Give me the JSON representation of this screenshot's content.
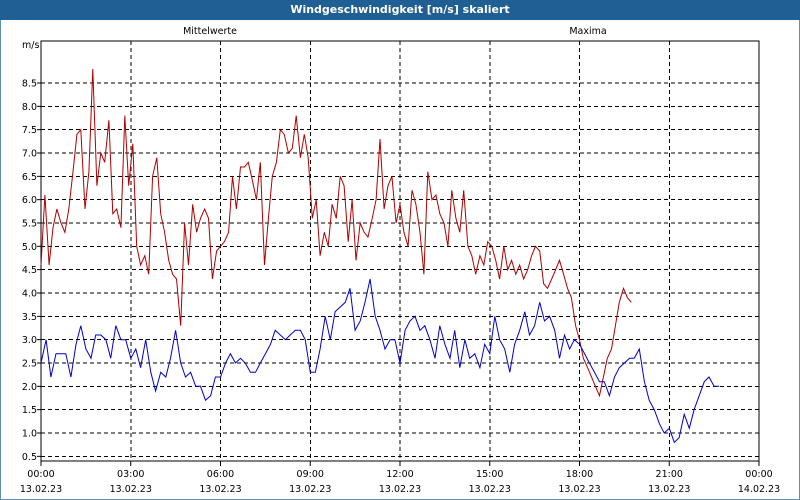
{
  "title": "Windgeschwindigkeit [m/s] skaliert",
  "chart_data": {
    "type": "line",
    "title": "Windgeschwindigkeit [m/s] skaliert",
    "ylabel": "m/s",
    "ylim": [
      0.4,
      9.4
    ],
    "yticks": [
      0.5,
      1.0,
      1.5,
      2.0,
      2.5,
      3.0,
      3.5,
      4.0,
      4.5,
      5.0,
      5.5,
      6.0,
      6.5,
      7.0,
      7.5,
      8.0,
      8.5
    ],
    "xlim_hours": [
      0,
      24
    ],
    "x_ticks": [
      {
        "hour": 0,
        "time": "00:00",
        "date": "13.02.23"
      },
      {
        "hour": 3,
        "time": "03:00",
        "date": "13.02.23"
      },
      {
        "hour": 6,
        "time": "06:00",
        "date": "13.02.23"
      },
      {
        "hour": 9,
        "time": "09:00",
        "date": "13.02.23"
      },
      {
        "hour": 12,
        "time": "12:00",
        "date": "13.02.23"
      },
      {
        "hour": 15,
        "time": "15:00",
        "date": "13.02.23"
      },
      {
        "hour": 18,
        "time": "18:00",
        "date": "13.02.23"
      },
      {
        "hour": 21,
        "time": "21:00",
        "date": "13.02.23"
      },
      {
        "hour": 24,
        "time": "00:00",
        "date": "14.02.23"
      }
    ],
    "grid": true,
    "series": [
      {
        "name": "Mittelwerte",
        "color": "#0000cc",
        "points": [
          [
            0.0,
            2.5
          ],
          [
            0.17,
            3.0
          ],
          [
            0.33,
            2.2
          ],
          [
            0.5,
            2.7
          ],
          [
            0.67,
            2.7
          ],
          [
            0.83,
            2.7
          ],
          [
            1.0,
            2.2
          ],
          [
            1.17,
            2.9
          ],
          [
            1.33,
            3.3
          ],
          [
            1.5,
            2.8
          ],
          [
            1.67,
            2.6
          ],
          [
            1.83,
            3.1
          ],
          [
            2.0,
            3.1
          ],
          [
            2.17,
            3.0
          ],
          [
            2.33,
            2.6
          ],
          [
            2.5,
            3.3
          ],
          [
            2.67,
            3.0
          ],
          [
            2.83,
            3.0
          ],
          [
            3.0,
            2.6
          ],
          [
            3.17,
            2.8
          ],
          [
            3.33,
            2.4
          ],
          [
            3.5,
            3.0
          ],
          [
            3.67,
            2.3
          ],
          [
            3.83,
            1.9
          ],
          [
            4.0,
            2.3
          ],
          [
            4.17,
            2.2
          ],
          [
            4.33,
            2.6
          ],
          [
            4.5,
            3.2
          ],
          [
            4.67,
            2.5
          ],
          [
            4.83,
            2.2
          ],
          [
            5.0,
            2.3
          ],
          [
            5.17,
            2.0
          ],
          [
            5.33,
            2.0
          ],
          [
            5.5,
            1.7
          ],
          [
            5.67,
            1.8
          ],
          [
            5.83,
            2.2
          ],
          [
            6.0,
            2.2
          ],
          [
            6.17,
            2.5
          ],
          [
            6.33,
            2.7
          ],
          [
            6.5,
            2.5
          ],
          [
            6.67,
            2.6
          ],
          [
            6.83,
            2.5
          ],
          [
            7.0,
            2.3
          ],
          [
            7.17,
            2.3
          ],
          [
            7.33,
            2.5
          ],
          [
            7.5,
            2.7
          ],
          [
            7.67,
            2.9
          ],
          [
            7.83,
            3.2
          ],
          [
            8.0,
            3.1
          ],
          [
            8.17,
            3.0
          ],
          [
            8.33,
            3.1
          ],
          [
            8.5,
            3.2
          ],
          [
            8.67,
            3.2
          ],
          [
            8.83,
            3.0
          ],
          [
            9.0,
            2.3
          ],
          [
            9.17,
            2.3
          ],
          [
            9.33,
            2.8
          ],
          [
            9.5,
            3.5
          ],
          [
            9.67,
            3.0
          ],
          [
            9.83,
            3.6
          ],
          [
            10.0,
            3.7
          ],
          [
            10.17,
            3.8
          ],
          [
            10.33,
            4.1
          ],
          [
            10.5,
            3.2
          ],
          [
            10.67,
            3.4
          ],
          [
            10.83,
            3.8
          ],
          [
            11.0,
            4.3
          ],
          [
            11.17,
            3.5
          ],
          [
            11.33,
            3.2
          ],
          [
            11.5,
            2.8
          ],
          [
            11.67,
            3.0
          ],
          [
            11.83,
            3.0
          ],
          [
            12.0,
            2.5
          ],
          [
            12.17,
            3.2
          ],
          [
            12.33,
            3.4
          ],
          [
            12.5,
            3.5
          ],
          [
            12.67,
            3.2
          ],
          [
            12.83,
            3.3
          ],
          [
            13.0,
            3.0
          ],
          [
            13.17,
            2.6
          ],
          [
            13.33,
            3.3
          ],
          [
            13.5,
            2.9
          ],
          [
            13.67,
            2.6
          ],
          [
            13.83,
            3.2
          ],
          [
            14.0,
            2.4
          ],
          [
            14.17,
            3.0
          ],
          [
            14.33,
            2.6
          ],
          [
            14.5,
            2.7
          ],
          [
            14.67,
            2.4
          ],
          [
            14.83,
            2.9
          ],
          [
            15.0,
            2.7
          ],
          [
            15.17,
            3.5
          ],
          [
            15.33,
            3.0
          ],
          [
            15.5,
            2.8
          ],
          [
            15.67,
            2.3
          ],
          [
            15.83,
            2.9
          ],
          [
            16.0,
            3.2
          ],
          [
            16.17,
            3.6
          ],
          [
            16.33,
            3.1
          ],
          [
            16.5,
            3.3
          ],
          [
            16.67,
            3.8
          ],
          [
            16.83,
            3.4
          ],
          [
            17.0,
            3.5
          ],
          [
            17.17,
            3.2
          ],
          [
            17.33,
            2.6
          ],
          [
            17.5,
            3.1
          ],
          [
            17.67,
            2.8
          ],
          [
            17.83,
            3.0
          ],
          [
            18.0,
            2.9
          ],
          [
            18.17,
            2.7
          ],
          [
            18.33,
            2.5
          ],
          [
            18.5,
            2.3
          ],
          [
            18.67,
            2.1
          ],
          [
            18.83,
            2.1
          ],
          [
            19.0,
            1.8
          ],
          [
            19.17,
            2.2
          ],
          [
            19.33,
            2.4
          ],
          [
            19.5,
            2.5
          ],
          [
            19.67,
            2.6
          ],
          [
            19.83,
            2.6
          ],
          [
            20.0,
            2.8
          ],
          [
            20.17,
            2.1
          ],
          [
            20.33,
            1.7
          ],
          [
            20.5,
            1.5
          ],
          [
            20.67,
            1.2
          ],
          [
            20.83,
            1.0
          ],
          [
            21.0,
            1.1
          ],
          [
            21.17,
            0.8
          ],
          [
            21.33,
            0.9
          ],
          [
            21.5,
            1.4
          ],
          [
            21.67,
            1.1
          ],
          [
            21.83,
            1.5
          ],
          [
            22.0,
            1.8
          ],
          [
            22.17,
            2.1
          ],
          [
            22.33,
            2.2
          ],
          [
            22.5,
            2.0
          ],
          [
            22.67,
            2.0
          ]
        ]
      },
      {
        "name": "Maxima",
        "color": "#b00000",
        "points": [
          [
            0.0,
            4.6
          ],
          [
            0.13,
            6.1
          ],
          [
            0.27,
            4.6
          ],
          [
            0.4,
            5.4
          ],
          [
            0.53,
            5.8
          ],
          [
            0.67,
            5.5
          ],
          [
            0.8,
            5.3
          ],
          [
            0.93,
            5.8
          ],
          [
            1.07,
            6.6
          ],
          [
            1.2,
            7.4
          ],
          [
            1.33,
            7.5
          ],
          [
            1.47,
            5.8
          ],
          [
            1.6,
            6.6
          ],
          [
            1.73,
            8.8
          ],
          [
            1.87,
            6.3
          ],
          [
            2.0,
            7.0
          ],
          [
            2.13,
            6.8
          ],
          [
            2.27,
            7.7
          ],
          [
            2.4,
            5.7
          ],
          [
            2.53,
            5.8
          ],
          [
            2.67,
            5.4
          ],
          [
            2.8,
            7.8
          ],
          [
            2.93,
            6.3
          ],
          [
            3.07,
            7.2
          ],
          [
            3.2,
            5.0
          ],
          [
            3.33,
            4.6
          ],
          [
            3.47,
            4.8
          ],
          [
            3.6,
            4.4
          ],
          [
            3.73,
            6.5
          ],
          [
            3.87,
            6.9
          ],
          [
            4.0,
            5.7
          ],
          [
            4.13,
            5.3
          ],
          [
            4.27,
            4.7
          ],
          [
            4.4,
            4.4
          ],
          [
            4.53,
            4.3
          ],
          [
            4.67,
            3.3
          ],
          [
            4.8,
            5.5
          ],
          [
            4.93,
            4.6
          ],
          [
            5.07,
            5.9
          ],
          [
            5.2,
            5.3
          ],
          [
            5.33,
            5.6
          ],
          [
            5.47,
            5.8
          ],
          [
            5.6,
            5.6
          ],
          [
            5.73,
            4.3
          ],
          [
            5.87,
            4.9
          ],
          [
            6.0,
            5.0
          ],
          [
            6.13,
            5.1
          ],
          [
            6.27,
            5.3
          ],
          [
            6.4,
            6.5
          ],
          [
            6.53,
            5.8
          ],
          [
            6.67,
            6.7
          ],
          [
            6.8,
            6.7
          ],
          [
            6.93,
            6.8
          ],
          [
            7.07,
            6.4
          ],
          [
            7.2,
            6.0
          ],
          [
            7.33,
            6.8
          ],
          [
            7.47,
            4.6
          ],
          [
            7.6,
            5.6
          ],
          [
            7.73,
            6.5
          ],
          [
            7.87,
            6.8
          ],
          [
            8.0,
            7.5
          ],
          [
            8.13,
            7.4
          ],
          [
            8.27,
            7.0
          ],
          [
            8.4,
            7.1
          ],
          [
            8.53,
            7.8
          ],
          [
            8.67,
            6.9
          ],
          [
            8.8,
            7.4
          ],
          [
            8.93,
            6.9
          ],
          [
            9.07,
            5.6
          ],
          [
            9.2,
            6.0
          ],
          [
            9.33,
            4.8
          ],
          [
            9.47,
            5.3
          ],
          [
            9.6,
            5.0
          ],
          [
            9.73,
            5.9
          ],
          [
            9.87,
            5.6
          ],
          [
            10.0,
            6.5
          ],
          [
            10.13,
            6.3
          ],
          [
            10.27,
            5.1
          ],
          [
            10.4,
            6.0
          ],
          [
            10.53,
            4.7
          ],
          [
            10.67,
            5.5
          ],
          [
            10.8,
            5.3
          ],
          [
            10.93,
            5.2
          ],
          [
            11.07,
            5.6
          ],
          [
            11.2,
            6.0
          ],
          [
            11.33,
            7.3
          ],
          [
            11.47,
            5.8
          ],
          [
            11.6,
            6.3
          ],
          [
            11.73,
            6.5
          ],
          [
            11.87,
            5.5
          ],
          [
            12.0,
            5.9
          ],
          [
            12.13,
            5.3
          ],
          [
            12.27,
            5.0
          ],
          [
            12.4,
            6.2
          ],
          [
            12.53,
            5.9
          ],
          [
            12.67,
            5.3
          ],
          [
            12.8,
            4.4
          ],
          [
            12.93,
            6.6
          ],
          [
            13.07,
            6.0
          ],
          [
            13.2,
            6.1
          ],
          [
            13.33,
            5.7
          ],
          [
            13.47,
            5.5
          ],
          [
            13.6,
            5.0
          ],
          [
            13.73,
            6.2
          ],
          [
            13.87,
            5.6
          ],
          [
            14.0,
            5.3
          ],
          [
            14.13,
            6.2
          ],
          [
            14.27,
            5.0
          ],
          [
            14.4,
            4.8
          ],
          [
            14.53,
            4.4
          ],
          [
            14.67,
            4.8
          ],
          [
            14.8,
            4.6
          ],
          [
            14.93,
            5.1
          ],
          [
            15.07,
            5.0
          ],
          [
            15.2,
            4.7
          ],
          [
            15.33,
            4.3
          ],
          [
            15.47,
            5.0
          ],
          [
            15.6,
            4.5
          ],
          [
            15.73,
            4.7
          ],
          [
            15.87,
            4.4
          ],
          [
            16.0,
            4.6
          ],
          [
            16.13,
            4.3
          ],
          [
            16.27,
            4.5
          ],
          [
            16.4,
            4.8
          ],
          [
            16.53,
            5.0
          ],
          [
            16.67,
            4.9
          ],
          [
            16.8,
            4.2
          ],
          [
            16.93,
            4.1
          ],
          [
            17.07,
            4.3
          ],
          [
            17.2,
            4.5
          ],
          [
            17.33,
            4.7
          ],
          [
            17.47,
            4.4
          ],
          [
            17.6,
            4.1
          ],
          [
            17.73,
            3.9
          ],
          [
            17.87,
            3.3
          ],
          [
            18.0,
            3.0
          ],
          [
            18.13,
            2.6
          ],
          [
            18.27,
            2.4
          ],
          [
            18.4,
            2.2
          ],
          [
            18.53,
            2.0
          ],
          [
            18.67,
            1.8
          ],
          [
            18.8,
            2.2
          ],
          [
            18.93,
            2.6
          ],
          [
            19.07,
            2.8
          ],
          [
            19.2,
            3.3
          ],
          [
            19.33,
            3.8
          ],
          [
            19.47,
            4.1
          ],
          [
            19.6,
            3.9
          ],
          [
            19.73,
            3.8
          ]
        ]
      }
    ]
  }
}
